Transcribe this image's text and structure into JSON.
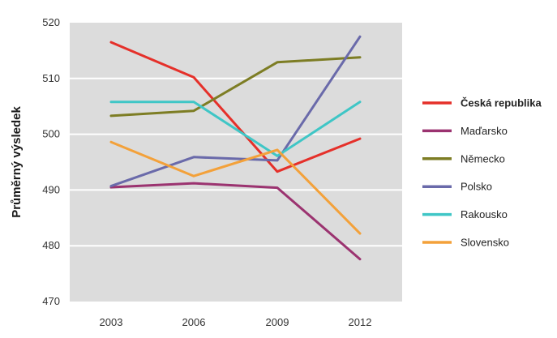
{
  "chart_data": {
    "type": "line",
    "title": "",
    "xlabel": "",
    "ylabel": "Průměrný výsledek",
    "x": [
      "2003",
      "2006",
      "2009",
      "2012"
    ],
    "ylim": [
      470,
      520
    ],
    "yticks": [
      470,
      480,
      490,
      500,
      510,
      520
    ],
    "grid": true,
    "legend_position": "right",
    "series": [
      {
        "name": "Česká republika",
        "color": "#e5302a",
        "highlight": true,
        "values": [
          516.5,
          510.2,
          493.3,
          499.2
        ]
      },
      {
        "name": "Maďarsko",
        "color": "#9b3370",
        "highlight": false,
        "values": [
          490.5,
          491.2,
          490.4,
          477.6
        ]
      },
      {
        "name": "Německo",
        "color": "#7d7d24",
        "highlight": false,
        "values": [
          503.3,
          504.2,
          512.9,
          513.8
        ]
      },
      {
        "name": "Polsko",
        "color": "#6a6aaa",
        "highlight": false,
        "values": [
          490.7,
          495.9,
          495.3,
          517.5
        ]
      },
      {
        "name": "Rakousko",
        "color": "#3fc6c6",
        "highlight": false,
        "values": [
          505.8,
          505.8,
          496.1,
          505.8
        ]
      },
      {
        "name": "Slovensko",
        "color": "#f3a13a",
        "highlight": false,
        "values": [
          498.6,
          492.5,
          497.2,
          482.2
        ]
      }
    ]
  }
}
